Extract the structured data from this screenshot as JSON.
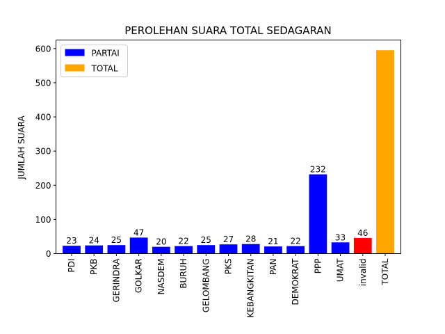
{
  "chart_data": {
    "type": "bar",
    "title": "PEROLEHAN SUARA TOTAL SEDAGARAN",
    "xlabel": "",
    "ylabel": "JUMLAH SUARA",
    "ylim": [
      0,
      625
    ],
    "yticks": [
      0,
      100,
      200,
      300,
      400,
      500,
      600
    ],
    "categories": [
      "PDI",
      "PKB",
      "GERINDRA",
      "GOLKAR",
      "NASDEM",
      "BURUH",
      "GELOMBANG",
      "PKS",
      "KEBANGKITAN",
      "PAN",
      "DEMOKRAT",
      "PPP",
      "UMAT",
      "invalid",
      "TOTAL"
    ],
    "values": [
      23,
      24,
      25,
      47,
      20,
      22,
      25,
      27,
      28,
      21,
      22,
      232,
      33,
      46,
      595
    ],
    "data_labels": [
      "23",
      "24",
      "25",
      "47",
      "20",
      "22",
      "25",
      "27",
      "28",
      "21",
      "22",
      "232",
      "33",
      "46",
      ""
    ],
    "bar_colors": [
      "#0000ff",
      "#0000ff",
      "#0000ff",
      "#0000ff",
      "#0000ff",
      "#0000ff",
      "#0000ff",
      "#0000ff",
      "#0000ff",
      "#0000ff",
      "#0000ff",
      "#0000ff",
      "#0000ff",
      "#ff0000",
      "#ffa500"
    ],
    "legend": {
      "placement": "top-left",
      "entries": [
        {
          "label": "PARTAI",
          "color": "#0000ff"
        },
        {
          "label": "TOTAL",
          "color": "#ffa500"
        }
      ]
    },
    "grid": false
  }
}
